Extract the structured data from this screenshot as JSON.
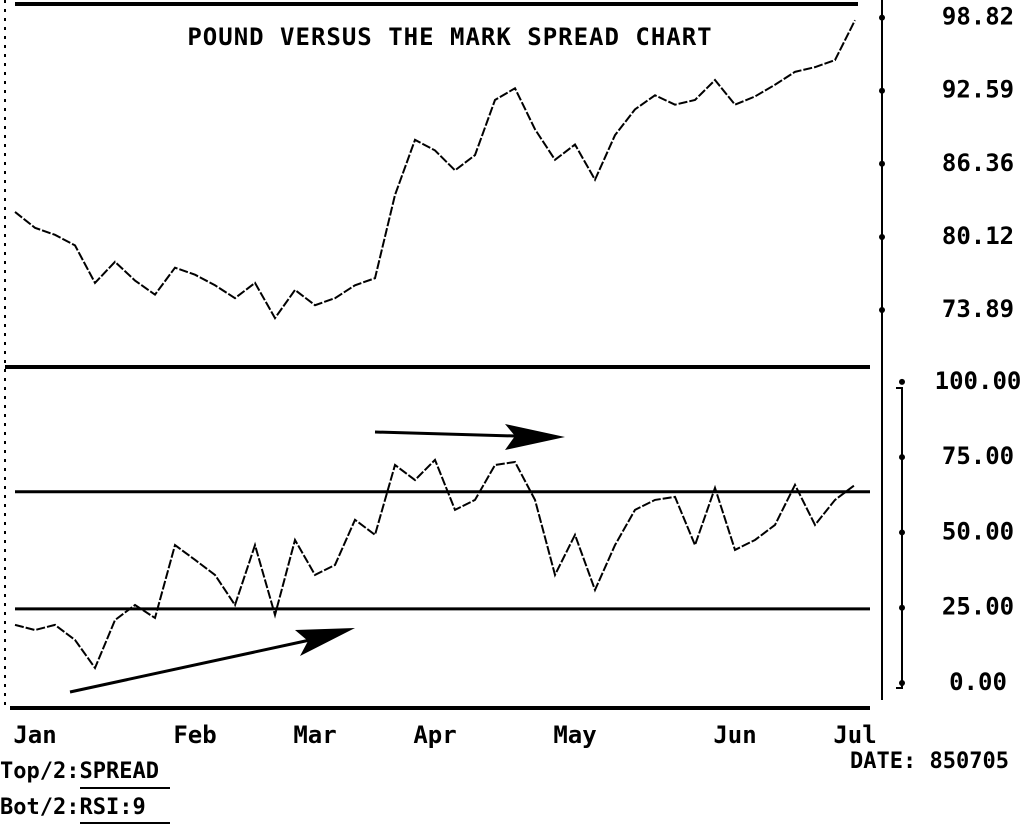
{
  "chart_data": [
    {
      "type": "line",
      "title": "POUND VERSUS THE MARK SPREAD CHART",
      "values": [
        82.25,
        80.9,
        80.3,
        79.4,
        76.2,
        78.0,
        76.4,
        75.2,
        77.5,
        76.9,
        76.0,
        74.9,
        76.2,
        73.2,
        75.6,
        74.3,
        74.9,
        76.0,
        76.6,
        83.7,
        88.4,
        87.5,
        85.8,
        87.1,
        91.8,
        92.8,
        89.3,
        86.7,
        88.0,
        85.0,
        88.8,
        91.0,
        92.2,
        91.4,
        91.8,
        93.5,
        91.4,
        92.1,
        93.1,
        94.2,
        94.6,
        95.2,
        98.6
      ],
      "color": "#000000",
      "ylim": [
        69.2,
        99.9
      ],
      "yticks": [
        73.89,
        80.12,
        86.36,
        92.59,
        98.82
      ]
    },
    {
      "type": "line",
      "categories": [
        null,
        "Jan",
        null,
        null,
        null,
        null,
        null,
        null,
        null,
        "Feb",
        null,
        null,
        null,
        null,
        null,
        "Mar",
        null,
        null,
        null,
        null,
        null,
        "Apr",
        null,
        null,
        null,
        null,
        null,
        null,
        "May",
        null,
        null,
        null,
        null,
        null,
        null,
        null,
        "Jun",
        null,
        null,
        null,
        null,
        null,
        "Jul"
      ],
      "values": [
        19.3,
        17.6,
        19.3,
        14.3,
        5.0,
        20.9,
        25.9,
        21.6,
        45.8,
        40.9,
        35.9,
        25.9,
        45.8,
        22.6,
        47.5,
        35.9,
        39.2,
        54.2,
        49.2,
        72.4,
        67.4,
        74.1,
        57.5,
        60.8,
        72.4,
        73.4,
        60.8,
        35.9,
        49.2,
        30.9,
        45.8,
        57.5,
        60.8,
        61.8,
        45.8,
        64.8,
        44.2,
        47.5,
        52.5,
        65.8,
        52.5,
        60.8,
        65.8
      ],
      "color": "#000000",
      "ylim": [
        -7.3,
        105.6
      ],
      "yticks": [
        {
          "value": 0,
          "label": "0.00"
        },
        {
          "value": 25,
          "label": "25.00"
        },
        {
          "value": 50,
          "label": "50.00"
        },
        {
          "value": 75,
          "label": "75.00"
        },
        {
          "value": 100,
          "label": "100.00"
        }
      ],
      "hlines": [
        24.6,
        63.5
      ]
    }
  ],
  "footer": [
    "Top/2:SPREAD",
    "Bot/2:RSI:9"
  ],
  "date": "DATE: 850705"
}
